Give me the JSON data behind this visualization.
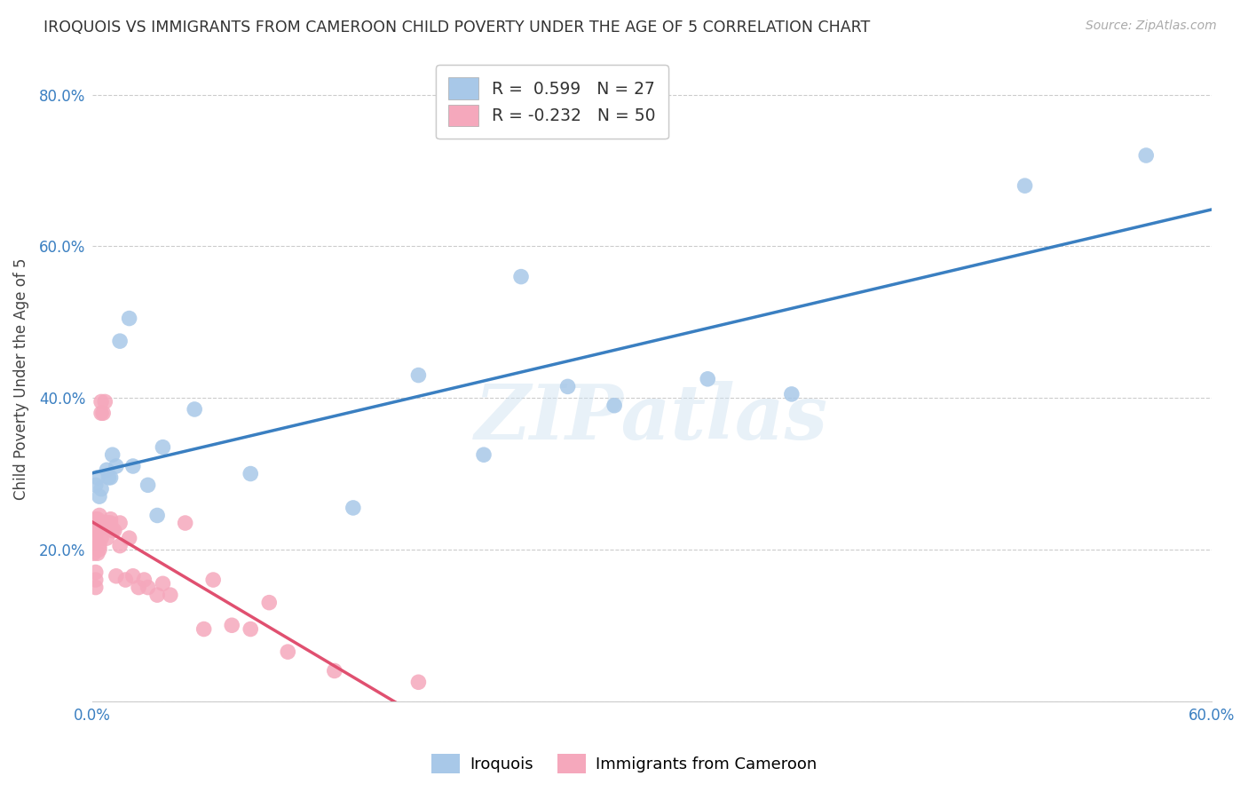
{
  "title": "IROQUOIS VS IMMIGRANTS FROM CAMEROON CHILD POVERTY UNDER THE AGE OF 5 CORRELATION CHART",
  "source": "Source: ZipAtlas.com",
  "ylabel": "Child Poverty Under the Age of 5",
  "xlim": [
    0.0,
    0.6
  ],
  "ylim": [
    0.0,
    0.85
  ],
  "iroquois_R": "0.599",
  "iroquois_N": "27",
  "cameroon_R": "-0.232",
  "cameroon_N": "50",
  "iroquois_color": "#a8c8e8",
  "cameroon_color": "#f5a8bc",
  "iroquois_line_color": "#3a7fc1",
  "cameroon_line_color": "#e05070",
  "watermark_text": "ZIPatlas",
  "background_color": "#ffffff",
  "legend_labels": [
    "Iroquois",
    "Immigrants from Cameroon"
  ],
  "iroquois_x": [
    0.002,
    0.003,
    0.004,
    0.005,
    0.008,
    0.009,
    0.01,
    0.011,
    0.013,
    0.015,
    0.02,
    0.022,
    0.03,
    0.035,
    0.038,
    0.055,
    0.085,
    0.14,
    0.175,
    0.21,
    0.23,
    0.255,
    0.28,
    0.33,
    0.375,
    0.5,
    0.565
  ],
  "iroquois_y": [
    0.285,
    0.295,
    0.27,
    0.28,
    0.305,
    0.295,
    0.295,
    0.325,
    0.31,
    0.475,
    0.505,
    0.31,
    0.285,
    0.245,
    0.335,
    0.385,
    0.3,
    0.255,
    0.43,
    0.325,
    0.56,
    0.415,
    0.39,
    0.425,
    0.405,
    0.68,
    0.72
  ],
  "cameroon_x": [
    0.001,
    0.001,
    0.001,
    0.002,
    0.002,
    0.002,
    0.002,
    0.002,
    0.003,
    0.003,
    0.003,
    0.004,
    0.004,
    0.004,
    0.005,
    0.005,
    0.005,
    0.006,
    0.006,
    0.007,
    0.007,
    0.007,
    0.008,
    0.008,
    0.009,
    0.01,
    0.01,
    0.011,
    0.012,
    0.013,
    0.015,
    0.015,
    0.018,
    0.02,
    0.022,
    0.025,
    0.028,
    0.03,
    0.035,
    0.038,
    0.042,
    0.05,
    0.06,
    0.065,
    0.075,
    0.085,
    0.095,
    0.105,
    0.13,
    0.175
  ],
  "cameroon_y": [
    0.23,
    0.21,
    0.195,
    0.24,
    0.215,
    0.17,
    0.16,
    0.15,
    0.24,
    0.225,
    0.195,
    0.245,
    0.205,
    0.2,
    0.38,
    0.395,
    0.215,
    0.23,
    0.38,
    0.395,
    0.235,
    0.235,
    0.235,
    0.215,
    0.235,
    0.235,
    0.24,
    0.225,
    0.225,
    0.165,
    0.235,
    0.205,
    0.16,
    0.215,
    0.165,
    0.15,
    0.16,
    0.15,
    0.14,
    0.155,
    0.14,
    0.235,
    0.095,
    0.16,
    0.1,
    0.095,
    0.13,
    0.065,
    0.04,
    0.025
  ]
}
